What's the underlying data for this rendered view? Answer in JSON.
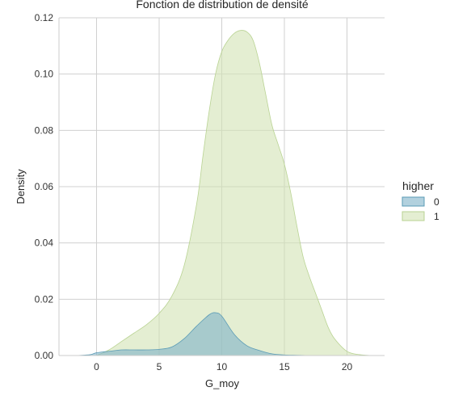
{
  "chart_data": {
    "type": "area",
    "title": "Fonction de distribution de densité",
    "xlabel": "G_moy",
    "ylabel": "Density",
    "xlim": [
      -3,
      23
    ],
    "ylim": [
      0,
      0.12
    ],
    "xticks": [
      0,
      5,
      10,
      15,
      20
    ],
    "yticks": [
      0.0,
      0.02,
      0.04,
      0.06,
      0.08,
      0.1,
      0.12
    ],
    "ytick_labels": [
      "0.00",
      "0.02",
      "0.04",
      "0.06",
      "0.08",
      "0.10",
      "0.12"
    ],
    "grid": true,
    "legend": {
      "title": "higher",
      "placement": "right"
    },
    "series": [
      {
        "name": "0",
        "color": "#7fb3c8",
        "x": [
          -1.5,
          -0.5,
          0,
          1,
          2,
          3,
          4,
          5,
          6,
          7,
          8,
          9,
          9.5,
          10,
          11,
          12,
          13,
          14,
          15,
          16,
          17
        ],
        "y": [
          0.0,
          0.0003,
          0.001,
          0.0015,
          0.002,
          0.002,
          0.002,
          0.0022,
          0.003,
          0.006,
          0.0105,
          0.0145,
          0.0152,
          0.014,
          0.0075,
          0.0035,
          0.0018,
          0.0006,
          0.0002,
          0.0001,
          0.0
        ]
      },
      {
        "name": "1",
        "color": "#d2e3b4",
        "x": [
          0,
          1,
          2,
          3,
          4,
          5,
          6,
          7,
          8,
          8.5,
          9,
          9.5,
          10,
          10.5,
          11,
          11.5,
          12,
          12.5,
          13,
          13.5,
          14,
          14.5,
          15,
          15.5,
          16,
          16.5,
          17,
          17.5,
          18,
          18.5,
          19,
          20,
          21,
          22
        ],
        "y": [
          0.0,
          0.002,
          0.005,
          0.008,
          0.011,
          0.015,
          0.021,
          0.032,
          0.054,
          0.071,
          0.087,
          0.1,
          0.108,
          0.112,
          0.1145,
          0.1155,
          0.115,
          0.112,
          0.104,
          0.093,
          0.082,
          0.075,
          0.068,
          0.058,
          0.046,
          0.035,
          0.028,
          0.022,
          0.016,
          0.01,
          0.006,
          0.0015,
          0.0003,
          0.0
        ]
      }
    ]
  }
}
